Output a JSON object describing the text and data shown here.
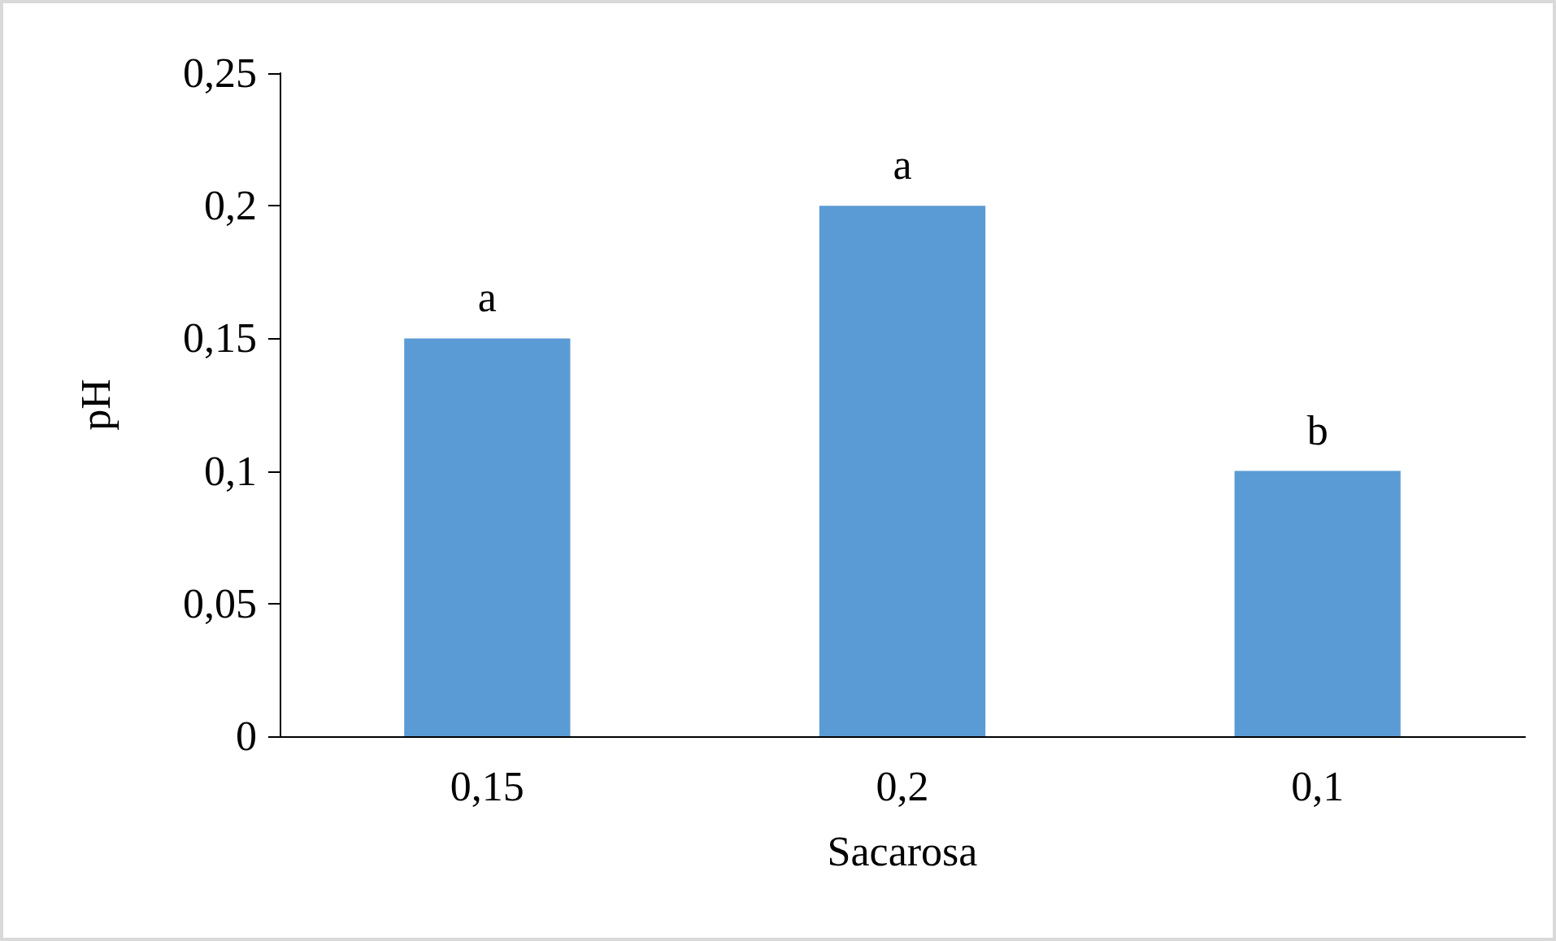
{
  "chart_data": {
    "type": "bar",
    "xlabel": "Sacarosa",
    "ylabel": "pH",
    "categories": [
      "0,15",
      "0,2",
      "0,1"
    ],
    "values": [
      0.15,
      0.2,
      0.1
    ],
    "color": "#5b9bd5",
    "ylim": [
      0,
      0.25
    ],
    "yticks": [
      {
        "value": 0,
        "label": "0"
      },
      {
        "value": 0.05,
        "label": "0,05"
      },
      {
        "value": 0.1,
        "label": "0,1"
      },
      {
        "value": 0.15,
        "label": "0,15"
      },
      {
        "value": 0.2,
        "label": "0,2"
      },
      {
        "value": 0.25,
        "label": "0,25"
      }
    ],
    "annotations": [
      {
        "text": "a",
        "x": "0,15",
        "y": 0.15
      },
      {
        "text": "a",
        "x": "0,2",
        "y": 0.2
      },
      {
        "text": "b",
        "x": "0,1",
        "y": 0.1
      }
    ],
    "grid": false
  }
}
